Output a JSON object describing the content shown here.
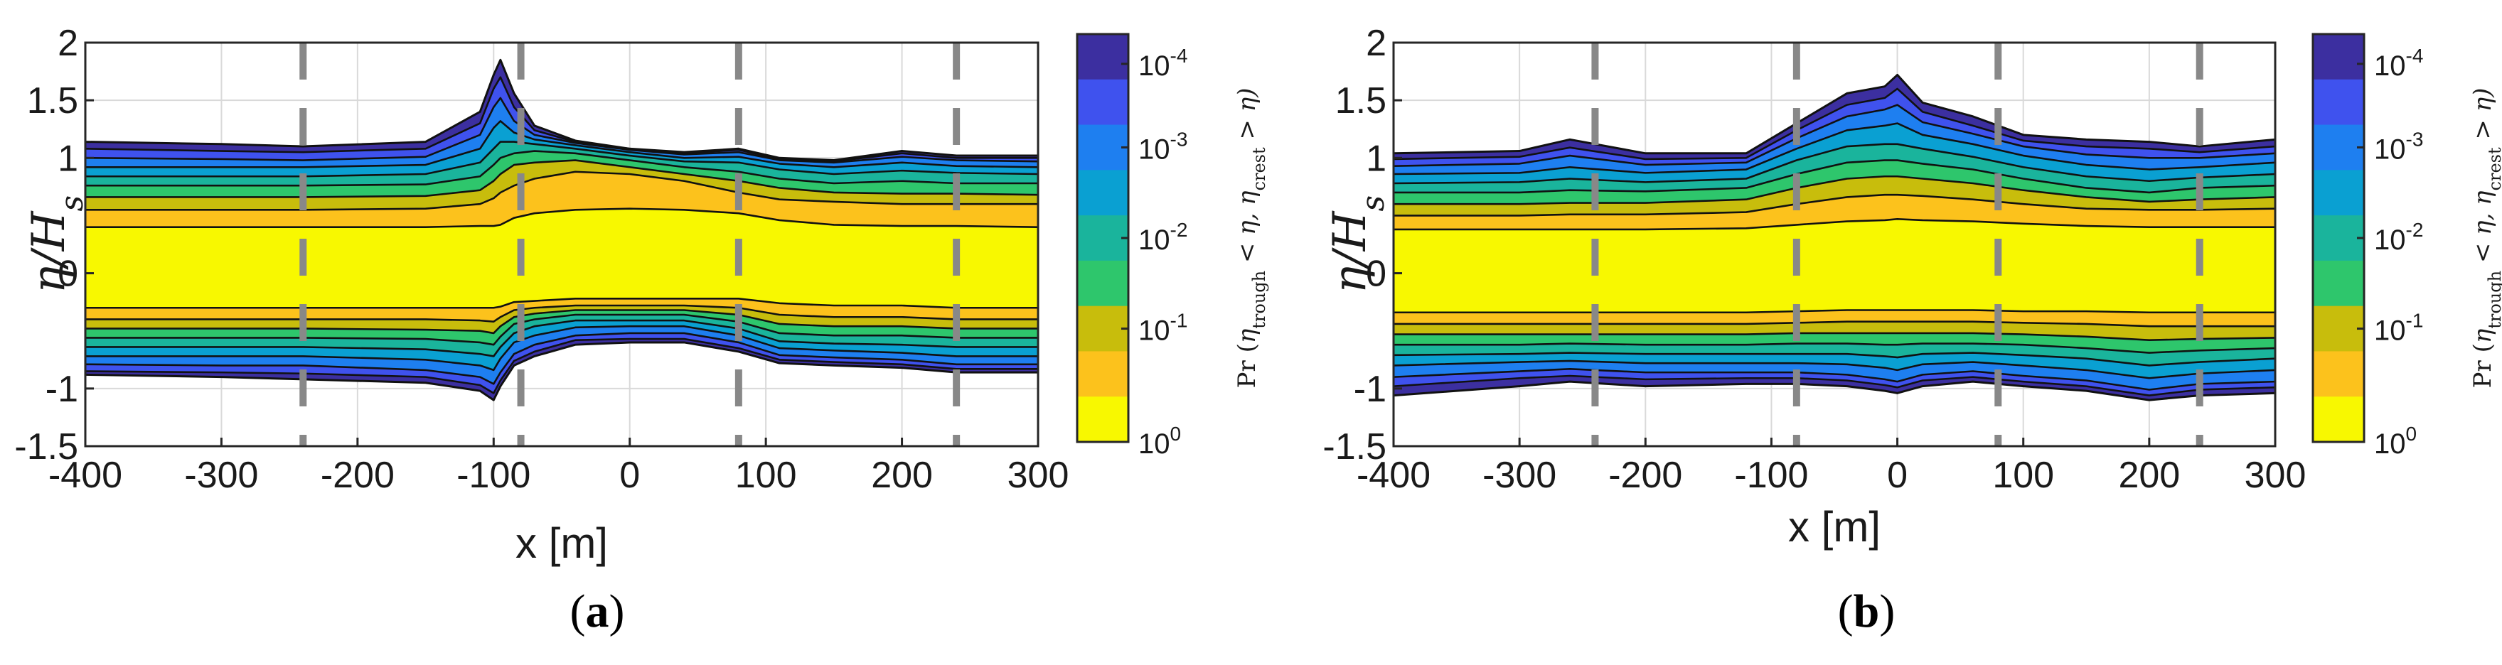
{
  "colors": {
    "contour_levels": [
      "#f8f800",
      "#fcc21c",
      "#c8bd0c",
      "#2ec66c",
      "#1ab49c",
      "#0aa0d2",
      "#1e7ff0",
      "#3f52ee",
      "#3c2fa0"
    ],
    "dashed_lines": "#888888",
    "grid": "#d9d9d9"
  },
  "chart_data": [
    {
      "panel": "a",
      "type": "area",
      "description_label": "(a)",
      "xlabel": "x [m]",
      "ylabel": "η/Hs",
      "xlim": [
        -400,
        300
      ],
      "ylim": [
        -1.5,
        2
      ],
      "xticks": [
        -400,
        -300,
        -200,
        -100,
        0,
        100,
        200,
        300
      ],
      "xtick_labels": [
        "-400",
        "-300",
        "-200",
        "-100",
        "0",
        "100",
        "200",
        "300"
      ],
      "yticks": [
        -1.5,
        -1,
        0,
        1,
        1.5,
        2
      ],
      "ytick_labels": [
        "-1.5",
        "-1",
        "0",
        "1",
        "1.5",
        "2"
      ],
      "dashed_vertical_lines_x": [
        -240,
        -80,
        80,
        240
      ],
      "x": [
        -400,
        -300,
        -240,
        -150,
        -110,
        -100,
        -95,
        -85,
        -70,
        -40,
        0,
        40,
        80,
        110,
        150,
        200,
        240,
        300
      ],
      "upper_envelope": [
        1.14,
        1.12,
        1.1,
        1.14,
        1.4,
        1.72,
        1.85,
        1.56,
        1.28,
        1.15,
        1.08,
        1.05,
        1.08,
        1.0,
        0.98,
        1.06,
        1.02,
        1.02
      ],
      "upper_contours": [
        [
          0.4,
          0.4,
          0.4,
          0.4,
          0.41,
          0.41,
          0.42,
          0.48,
          0.52,
          0.55,
          0.56,
          0.55,
          0.52,
          0.46,
          0.42,
          0.41,
          0.41,
          0.4
        ],
        [
          0.55,
          0.55,
          0.55,
          0.56,
          0.6,
          0.65,
          0.7,
          0.76,
          0.82,
          0.88,
          0.86,
          0.8,
          0.7,
          0.64,
          0.62,
          0.6,
          0.6,
          0.6
        ],
        [
          0.66,
          0.66,
          0.66,
          0.67,
          0.72,
          0.8,
          0.86,
          0.94,
          0.96,
          0.98,
          0.92,
          0.86,
          0.8,
          0.74,
          0.7,
          0.69,
          0.69,
          0.68
        ],
        [
          0.76,
          0.76,
          0.76,
          0.77,
          0.84,
          0.94,
          1.0,
          1.04,
          1.06,
          1.04,
          0.98,
          0.92,
          0.88,
          0.82,
          0.78,
          0.8,
          0.78,
          0.78
        ],
        [
          0.84,
          0.84,
          0.84,
          0.86,
          0.96,
          1.08,
          1.14,
          1.14,
          1.12,
          1.08,
          1.02,
          0.97,
          0.96,
          0.9,
          0.86,
          0.89,
          0.87,
          0.86
        ],
        [
          0.92,
          0.92,
          0.92,
          0.94,
          1.08,
          1.26,
          1.32,
          1.22,
          1.16,
          1.11,
          1.05,
          1.0,
          1.01,
          0.95,
          0.92,
          0.96,
          0.93,
          0.92
        ],
        [
          1.0,
          0.99,
          0.98,
          1.01,
          1.2,
          1.44,
          1.52,
          1.32,
          1.2,
          1.13,
          1.07,
          1.03,
          1.05,
          0.98,
          0.96,
          1.01,
          0.98,
          0.97
        ],
        [
          1.08,
          1.06,
          1.05,
          1.08,
          1.3,
          1.6,
          1.7,
          1.44,
          1.24,
          1.14,
          1.08,
          1.04,
          1.07,
          0.99,
          0.97,
          1.04,
          1.0,
          1.0
        ]
      ],
      "lower_envelope": [
        -0.88,
        -0.9,
        -0.92,
        -0.95,
        -1.02,
        -1.1,
        -0.98,
        -0.8,
        -0.72,
        -0.62,
        -0.6,
        -0.6,
        -0.68,
        -0.78,
        -0.8,
        -0.82,
        -0.86,
        -0.86
      ],
      "lower_contours": [
        [
          -0.3,
          -0.3,
          -0.3,
          -0.3,
          -0.3,
          -0.3,
          -0.29,
          -0.25,
          -0.24,
          -0.22,
          -0.22,
          -0.22,
          -0.22,
          -0.26,
          -0.28,
          -0.28,
          -0.3,
          -0.3
        ],
        [
          -0.4,
          -0.4,
          -0.4,
          -0.4,
          -0.41,
          -0.42,
          -0.38,
          -0.32,
          -0.3,
          -0.28,
          -0.28,
          -0.28,
          -0.3,
          -0.36,
          -0.38,
          -0.38,
          -0.4,
          -0.4
        ],
        [
          -0.48,
          -0.48,
          -0.48,
          -0.49,
          -0.5,
          -0.52,
          -0.46,
          -0.38,
          -0.35,
          -0.32,
          -0.32,
          -0.32,
          -0.36,
          -0.44,
          -0.46,
          -0.46,
          -0.48,
          -0.48
        ],
        [
          -0.56,
          -0.56,
          -0.56,
          -0.57,
          -0.6,
          -0.62,
          -0.55,
          -0.44,
          -0.4,
          -0.36,
          -0.36,
          -0.36,
          -0.42,
          -0.52,
          -0.54,
          -0.54,
          -0.56,
          -0.56
        ],
        [
          -0.64,
          -0.64,
          -0.64,
          -0.66,
          -0.7,
          -0.72,
          -0.64,
          -0.52,
          -0.46,
          -0.41,
          -0.41,
          -0.41,
          -0.48,
          -0.59,
          -0.61,
          -0.62,
          -0.64,
          -0.64
        ],
        [
          -0.72,
          -0.72,
          -0.72,
          -0.75,
          -0.8,
          -0.84,
          -0.74,
          -0.6,
          -0.54,
          -0.47,
          -0.46,
          -0.46,
          -0.54,
          -0.65,
          -0.67,
          -0.69,
          -0.72,
          -0.72
        ],
        [
          -0.79,
          -0.8,
          -0.8,
          -0.84,
          -0.9,
          -0.96,
          -0.86,
          -0.7,
          -0.62,
          -0.54,
          -0.52,
          -0.52,
          -0.6,
          -0.71,
          -0.73,
          -0.75,
          -0.79,
          -0.79
        ],
        [
          -0.85,
          -0.86,
          -0.87,
          -0.9,
          -0.97,
          -1.04,
          -0.93,
          -0.76,
          -0.68,
          -0.58,
          -0.57,
          -0.57,
          -0.65,
          -0.75,
          -0.77,
          -0.79,
          -0.83,
          -0.83
        ]
      ]
    },
    {
      "panel": "b",
      "type": "area",
      "description_label": "(b)",
      "xlabel": "x [m]",
      "ylabel": "η/Hs",
      "xlim": [
        -400,
        300
      ],
      "ylim": [
        -1.5,
        2
      ],
      "xticks": [
        -400,
        -300,
        -200,
        -100,
        0,
        100,
        200,
        300
      ],
      "xtick_labels": [
        "-400",
        "-300",
        "-200",
        "-100",
        "0",
        "100",
        "200",
        "300"
      ],
      "yticks": [
        -1.5,
        -1,
        0,
        1,
        1.5,
        2
      ],
      "ytick_labels": [
        "-1.5",
        "-1",
        "0",
        "1",
        "1.5",
        "2"
      ],
      "dashed_vertical_lines_x": [
        -240,
        -80,
        80,
        240
      ],
      "x": [
        -400,
        -300,
        -260,
        -200,
        -120,
        -80,
        -40,
        -10,
        0,
        20,
        60,
        100,
        150,
        200,
        240,
        300
      ],
      "upper_envelope": [
        1.04,
        1.06,
        1.16,
        1.04,
        1.04,
        1.3,
        1.56,
        1.62,
        1.72,
        1.48,
        1.36,
        1.2,
        1.16,
        1.14,
        1.1,
        1.16
      ],
      "upper_contours": [
        [
          0.38,
          0.38,
          0.38,
          0.38,
          0.39,
          0.42,
          0.45,
          0.46,
          0.47,
          0.46,
          0.45,
          0.43,
          0.41,
          0.4,
          0.4,
          0.4
        ],
        [
          0.5,
          0.5,
          0.51,
          0.51,
          0.53,
          0.6,
          0.66,
          0.68,
          0.68,
          0.67,
          0.64,
          0.6,
          0.56,
          0.55,
          0.55,
          0.56
        ],
        [
          0.6,
          0.6,
          0.61,
          0.61,
          0.64,
          0.74,
          0.82,
          0.84,
          0.84,
          0.82,
          0.78,
          0.72,
          0.66,
          0.62,
          0.64,
          0.66
        ],
        [
          0.7,
          0.7,
          0.72,
          0.71,
          0.74,
          0.86,
          0.96,
          0.98,
          0.98,
          0.95,
          0.9,
          0.82,
          0.74,
          0.7,
          0.74,
          0.76
        ],
        [
          0.78,
          0.79,
          0.82,
          0.79,
          0.82,
          0.98,
          1.1,
          1.12,
          1.12,
          1.08,
          1.01,
          0.92,
          0.84,
          0.8,
          0.83,
          0.86
        ],
        [
          0.86,
          0.87,
          0.92,
          0.87,
          0.9,
          1.08,
          1.24,
          1.28,
          1.3,
          1.2,
          1.12,
          1.02,
          0.94,
          0.9,
          0.92,
          0.96
        ],
        [
          0.93,
          0.95,
          1.02,
          0.94,
          0.96,
          1.17,
          1.36,
          1.42,
          1.46,
          1.31,
          1.21,
          1.1,
          1.03,
          1.0,
          1.0,
          1.04
        ],
        [
          0.99,
          1.01,
          1.09,
          0.99,
          1.0,
          1.24,
          1.46,
          1.52,
          1.6,
          1.4,
          1.28,
          1.15,
          1.1,
          1.08,
          1.05,
          1.1
        ]
      ],
      "lower_envelope": [
        -1.06,
        -0.98,
        -0.94,
        -0.98,
        -0.96,
        -0.96,
        -0.98,
        -1.02,
        -1.04,
        -0.98,
        -0.94,
        -0.98,
        -1.02,
        -1.1,
        -1.06,
        -1.04
      ],
      "lower_contours": [
        [
          -0.34,
          -0.34,
          -0.34,
          -0.34,
          -0.34,
          -0.33,
          -0.32,
          -0.32,
          -0.32,
          -0.32,
          -0.32,
          -0.33,
          -0.33,
          -0.34,
          -0.34,
          -0.34
        ],
        [
          -0.44,
          -0.44,
          -0.44,
          -0.44,
          -0.44,
          -0.43,
          -0.42,
          -0.42,
          -0.42,
          -0.42,
          -0.42,
          -0.43,
          -0.44,
          -0.46,
          -0.46,
          -0.46
        ],
        [
          -0.53,
          -0.53,
          -0.53,
          -0.53,
          -0.53,
          -0.52,
          -0.52,
          -0.52,
          -0.52,
          -0.52,
          -0.52,
          -0.53,
          -0.55,
          -0.58,
          -0.57,
          -0.56
        ],
        [
          -0.62,
          -0.62,
          -0.61,
          -0.62,
          -0.62,
          -0.61,
          -0.61,
          -0.62,
          -0.62,
          -0.61,
          -0.61,
          -0.62,
          -0.65,
          -0.69,
          -0.67,
          -0.65
        ],
        [
          -0.71,
          -0.7,
          -0.69,
          -0.7,
          -0.7,
          -0.7,
          -0.7,
          -0.72,
          -0.73,
          -0.7,
          -0.69,
          -0.71,
          -0.74,
          -0.8,
          -0.77,
          -0.74
        ],
        [
          -0.8,
          -0.77,
          -0.76,
          -0.78,
          -0.78,
          -0.78,
          -0.79,
          -0.82,
          -0.84,
          -0.79,
          -0.77,
          -0.8,
          -0.84,
          -0.91,
          -0.87,
          -0.84
        ],
        [
          -0.9,
          -0.85,
          -0.83,
          -0.86,
          -0.86,
          -0.86,
          -0.88,
          -0.92,
          -0.94,
          -0.88,
          -0.85,
          -0.89,
          -0.93,
          -1.01,
          -0.96,
          -0.94
        ],
        [
          -0.98,
          -0.91,
          -0.89,
          -0.92,
          -0.91,
          -0.91,
          -0.93,
          -0.97,
          -0.99,
          -0.93,
          -0.9,
          -0.94,
          -0.98,
          -1.06,
          -1.01,
          -0.99
        ]
      ]
    }
  ],
  "colorbar": {
    "tick_bases": [
      "10",
      "10",
      "10",
      "10",
      "10"
    ],
    "tick_exponents": [
      "-4",
      "-3",
      "-2",
      "-1",
      "0"
    ],
    "title_prefix": "Pr",
    "title_body": "η",
    "title_sub1": "trough",
    "title_mid": " < η,  η",
    "title_sub2": "crest",
    "title_end": " > η"
  }
}
